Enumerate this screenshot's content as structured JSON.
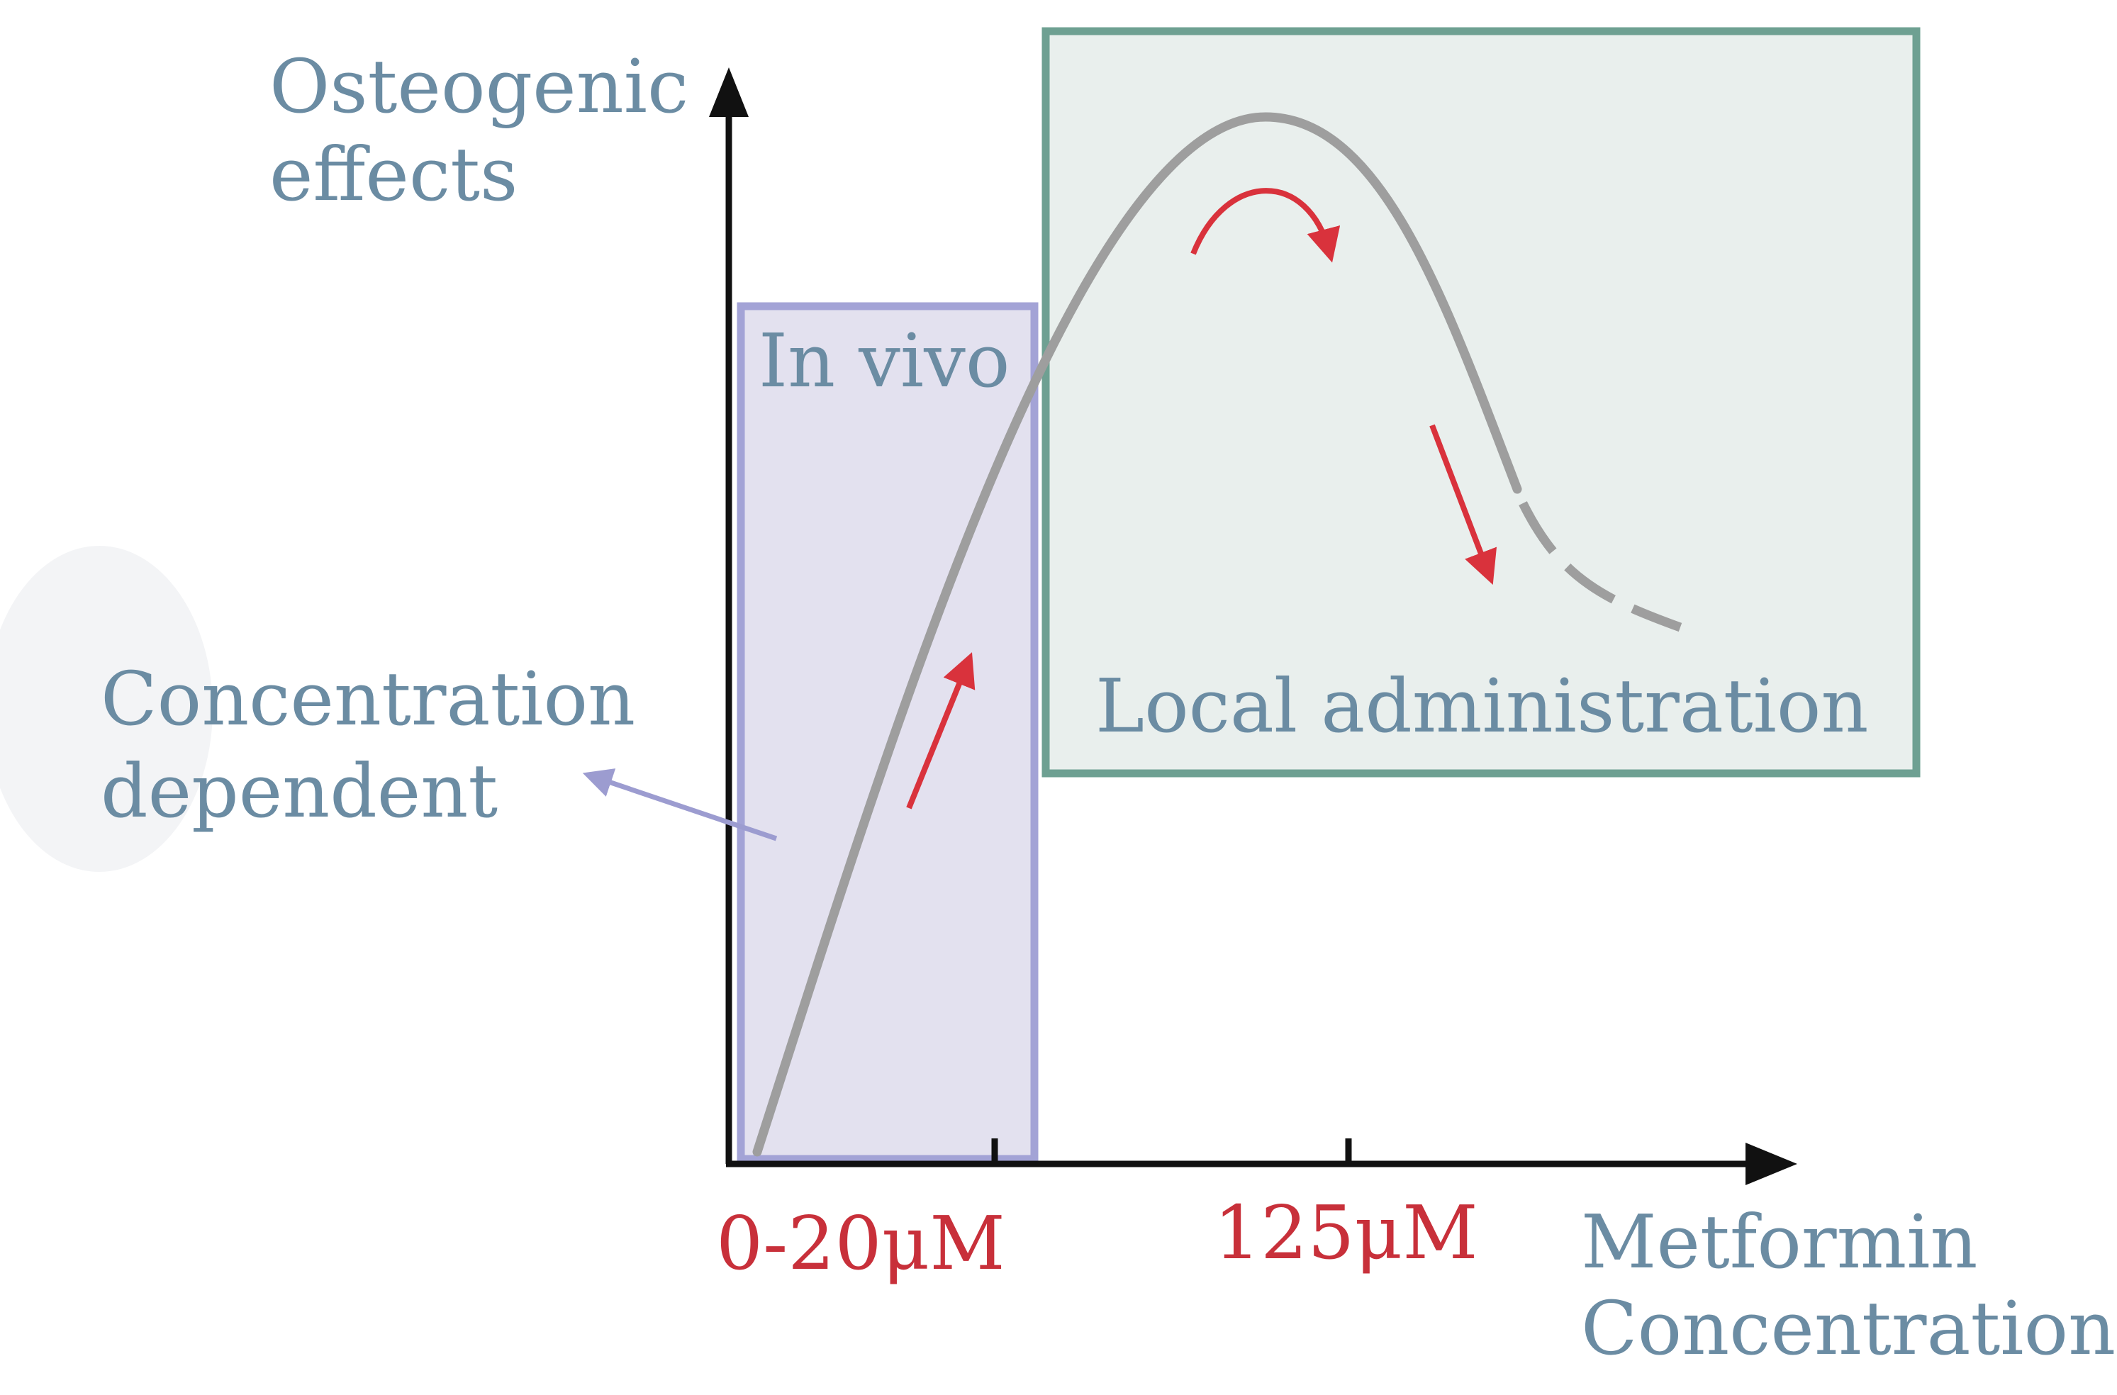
{
  "colors": {
    "label_text": "#6b8ca3",
    "tick_text": "#c8303a",
    "axis": "#111111",
    "curve": "#9e9e9e",
    "arrow_red": "#d9323c",
    "arrow_purple": "#9c9cd0",
    "in_vivo_fill": "#e3e1ef",
    "in_vivo_border": "#a3a3d6",
    "local_fill": "#e9efed",
    "local_border": "#6ea092"
  },
  "axes": {
    "y_label_line1": "Osteogenic",
    "y_label_line2": "effects",
    "x_label_line1": "Metformin",
    "x_label_line2": "Concentration",
    "ticks": [
      "0-20μM",
      "125μM"
    ]
  },
  "regions": {
    "in_vivo": "In vivo",
    "local": "Local administration"
  },
  "annotation": {
    "line1": "Concentration",
    "line2": "dependent"
  }
}
